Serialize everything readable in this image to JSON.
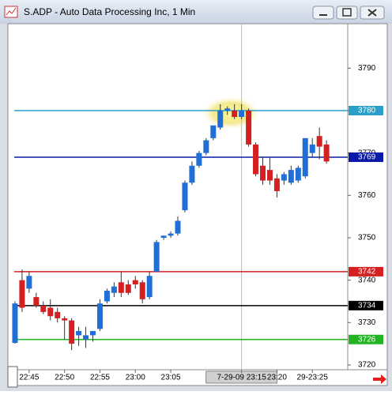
{
  "window": {
    "title": "S.ADP - Auto Data Processing Inc, 1 Min"
  },
  "chart_data": {
    "type": "candlestick",
    "up_color": "#1f6fd6",
    "down_color": "#d42020",
    "x": [
      "22:43",
      "22:44",
      "22:45",
      "22:46",
      "22:47",
      "22:48",
      "22:49",
      "22:50",
      "22:51",
      "22:52",
      "22:53",
      "22:54",
      "22:55",
      "22:56",
      "22:57",
      "22:58",
      "22:59",
      "23:00",
      "23:01",
      "23:02",
      "23:03",
      "23:04",
      "23:05",
      "23:06",
      "23:07",
      "23:08",
      "23:09",
      "23:10",
      "23:11",
      "23:12",
      "23:13",
      "23:14",
      "23:15",
      "23:16",
      "23:17",
      "23:18",
      "23:19",
      "23:20",
      "23:21",
      "23:22",
      "23:23",
      "23:24",
      "23:25",
      "23:26",
      "23:27"
    ],
    "open": [
      3725.2,
      3740,
      3738,
      3736,
      3734,
      3733.5,
      3732.5,
      3731,
      3730.5,
      3727,
      3726,
      3727,
      3728.5,
      3735,
      3737,
      3739.5,
      3739,
      3740,
      3739.5,
      3736,
      3742,
      3750,
      3750.5,
      3751,
      3756.5,
      3763,
      3767,
      3770,
      3773.5,
      3776,
      3780,
      3780,
      3778.5,
      3780,
      3772,
      3767,
      3766,
      3764,
      3763.5,
      3763,
      3763.5,
      3764.5,
      3770,
      3774,
      3772
    ],
    "high": [
      3735,
      3742.5,
      3742,
      3737,
      3735,
      3735.5,
      3733.5,
      3731.5,
      3731,
      3729,
      3729,
      3728,
      3735.5,
      3738,
      3739.5,
      3742,
      3740,
      3741,
      3740,
      3742,
      3749.5,
      3750.5,
      3751.5,
      3755,
      3763.5,
      3768,
      3770.5,
      3773.5,
      3776.5,
      3781.5,
      3781,
      3781.5,
      3781.5,
      3780.5,
      3772.5,
      3769,
      3769,
      3765,
      3765.5,
      3767,
      3767,
      3773.5,
      3773.5,
      3776,
      3773
    ],
    "low": [
      3725,
      3732.5,
      3737,
      3733.5,
      3732,
      3730.5,
      3730,
      3726,
      3723.5,
      3724.5,
      3724,
      3725.5,
      3728,
      3734.5,
      3736,
      3736,
      3736.5,
      3738,
      3734.5,
      3735.5,
      3742,
      3749.5,
      3750,
      3750.5,
      3756,
      3762.5,
      3766.5,
      3769.5,
      3773,
      3775.5,
      3779,
      3778,
      3778,
      3771.5,
      3764.5,
      3762.5,
      3762.5,
      3759.5,
      3762.5,
      3762.5,
      3763,
      3764,
      3769,
      3768.5,
      3767.5
    ],
    "close": [
      3734.5,
      3733.5,
      3741,
      3734,
      3732.5,
      3731.5,
      3731,
      3730.5,
      3725,
      3728,
      3727,
      3728,
      3734.5,
      3737.5,
      3738.5,
      3737,
      3737,
      3739,
      3735.5,
      3741,
      3749,
      3750.5,
      3751,
      3754,
      3763,
      3767,
      3770,
      3773,
      3776.5,
      3780,
      3780.5,
      3778.5,
      3780,
      3772,
      3765,
      3763.5,
      3763.5,
      3761,
      3765,
      3766,
      3766.5,
      3773.5,
      3772,
      3771.5,
      3768
    ],
    "xlim": [
      "22:42",
      "23:30"
    ],
    "xticks": [
      "22:45",
      "22:50",
      "22:55",
      "23:00",
      "23:05",
      {
        "value": "23:15",
        "label": "7-29-09 23:15"
      },
      "23:20",
      {
        "value": "23:25",
        "label": "29-23:25"
      }
    ],
    "cursor_x": "23:15",
    "ylim": [
      3718.5,
      3800.5
    ],
    "yticks": [
      3720,
      3730,
      3740,
      3750,
      3760,
      3770,
      3780,
      3790
    ],
    "levels": [
      {
        "value": 3780,
        "color": "#2aa0c8"
      },
      {
        "value": 3769,
        "color": "#0a1aa8"
      },
      {
        "value": 3742,
        "color": "#d42020"
      },
      {
        "value": 3734,
        "color": "#000000"
      },
      {
        "value": 3726,
        "color": "#22b422"
      }
    ]
  }
}
